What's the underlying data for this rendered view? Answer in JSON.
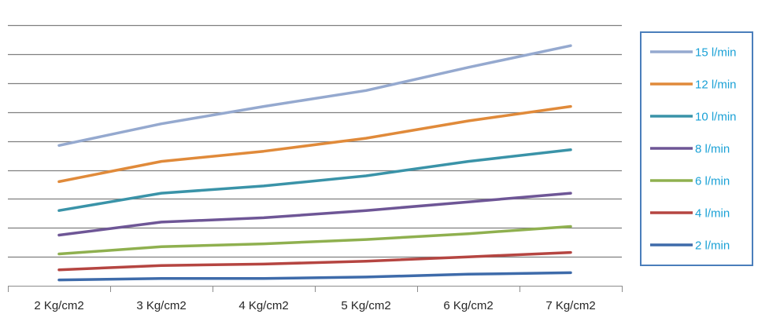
{
  "chart_data": {
    "type": "line",
    "title": "",
    "xlabel": "",
    "ylabel": "",
    "categories": [
      "2 Kg/cm2",
      "3 Kg/cm2",
      "4 Kg/cm2",
      "5 Kg/cm2",
      "6 Kg/cm2",
      "7 Kg/cm2"
    ],
    "ylim": [
      0,
      9.5
    ],
    "grid": true,
    "legend_position": "right",
    "series": [
      {
        "name": "15 l/min",
        "color": "#95A9CF",
        "values": [
          4.85,
          5.6,
          6.2,
          6.75,
          7.55,
          8.3
        ]
      },
      {
        "name": "12 l/min",
        "color": "#E08A3A",
        "values": [
          3.6,
          4.3,
          4.65,
          5.1,
          5.7,
          6.2
        ]
      },
      {
        "name": "10 l/min",
        "color": "#3A93A8",
        "values": [
          2.6,
          3.2,
          3.45,
          3.8,
          4.3,
          4.7
        ]
      },
      {
        "name": "8 l/min",
        "color": "#6E5696",
        "values": [
          1.75,
          2.2,
          2.35,
          2.6,
          2.9,
          3.2
        ]
      },
      {
        "name": "6 l/min",
        "color": "#8FB04F",
        "values": [
          1.1,
          1.35,
          1.45,
          1.6,
          1.8,
          2.05
        ]
      },
      {
        "name": "4 l/min",
        "color": "#B54541",
        "values": [
          0.55,
          0.7,
          0.75,
          0.85,
          1.0,
          1.15
        ]
      },
      {
        "name": "2 l/min",
        "color": "#3E6BAA",
        "values": [
          0.2,
          0.25,
          0.25,
          0.3,
          0.4,
          0.45
        ]
      }
    ]
  },
  "legend_text_color": "#1AA1D6",
  "legend_border_color": "#4A7EBB",
  "axis_color": "#8C8C8C"
}
